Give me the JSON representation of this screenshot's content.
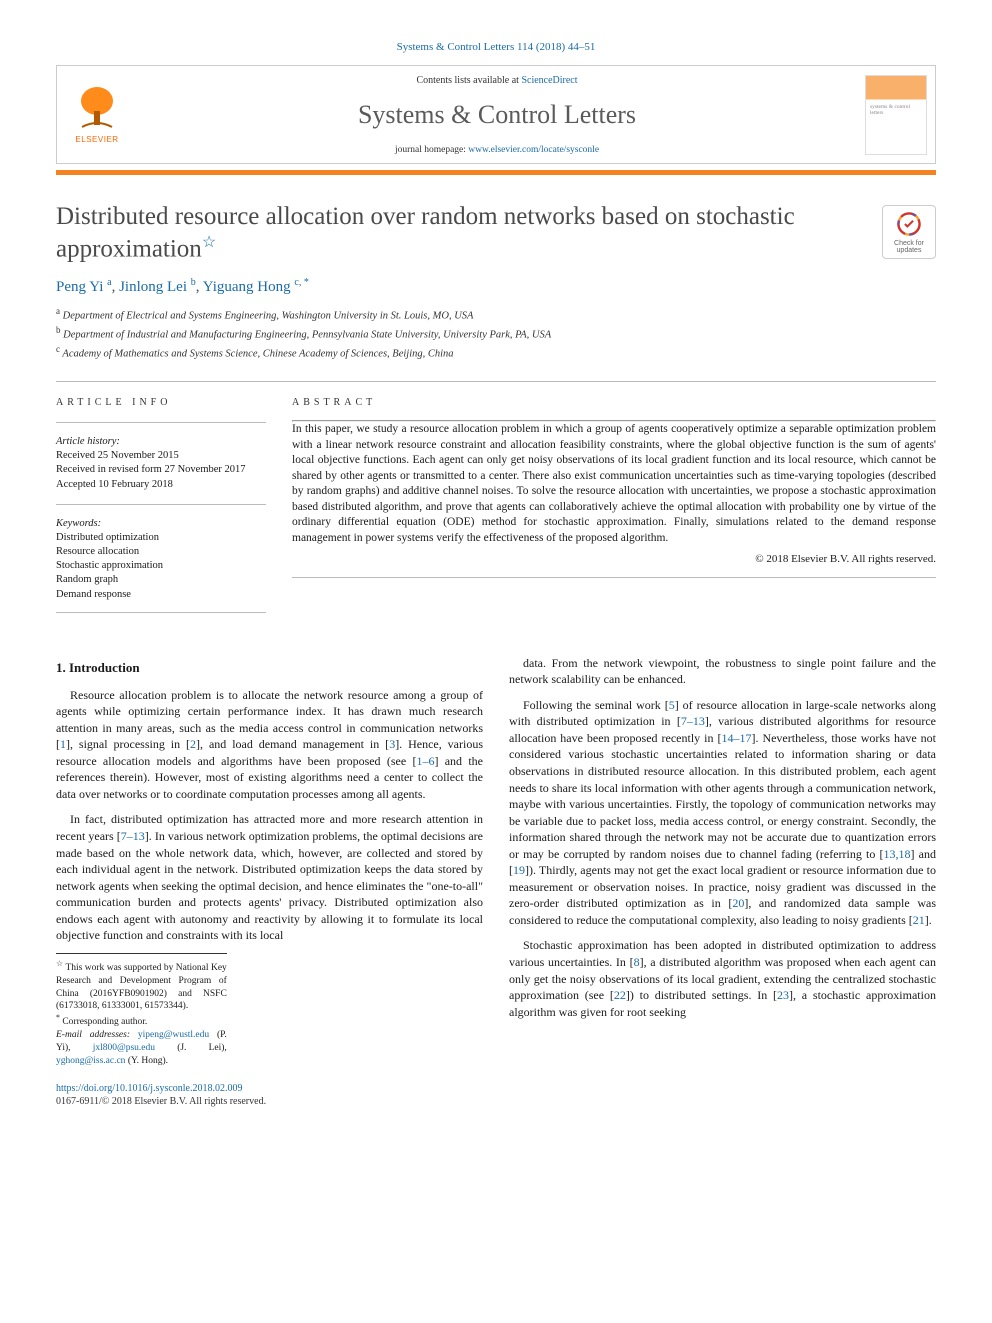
{
  "citation": "Systems & Control Letters 114 (2018) 44–51",
  "header": {
    "contents_prefix": "Contents lists available at ",
    "contents_link": "ScienceDirect",
    "journal_name": "Systems & Control Letters",
    "homepage_prefix": "journal homepage: ",
    "homepage_url": "www.elsevier.com/locate/sysconle",
    "publisher": "ELSEVIER"
  },
  "title": "Distributed resource allocation over random networks based on stochastic approximation",
  "check_updates_label": "Check for updates",
  "authors_html": "Peng Yi",
  "authors": [
    {
      "name": "Peng Yi",
      "affil": "a"
    },
    {
      "name": "Jinlong Lei",
      "affil": "b"
    },
    {
      "name": "Yiguang Hong",
      "affil": "c,",
      "corr": "*"
    }
  ],
  "affiliations": [
    {
      "sup": "a",
      "text": "Department of Electrical and Systems Engineering, Washington University in St. Louis, MO, USA"
    },
    {
      "sup": "b",
      "text": "Department of Industrial and Manufacturing Engineering, Pennsylvania State University, University Park, PA, USA"
    },
    {
      "sup": "c",
      "text": "Academy of Mathematics and Systems Science, Chinese Academy of Sciences, Beijing, China"
    }
  ],
  "info": {
    "heading": "article info",
    "history_label": "Article history:",
    "received": "Received 25 November 2015",
    "revised": "Received in revised form 27 November 2017",
    "accepted": "Accepted 10 February 2018",
    "keywords_label": "Keywords:",
    "keywords": [
      "Distributed optimization",
      "Resource allocation",
      "Stochastic approximation",
      "Random graph",
      "Demand response"
    ]
  },
  "abstract": {
    "heading": "abstract",
    "text": "In this paper, we study a resource allocation problem in which a group of agents cooperatively optimize a separable optimization problem with a linear network resource constraint and allocation feasibility constraints, where the global objective function is the sum of agents' local objective functions. Each agent can only get noisy observations of its local gradient function and its local resource, which cannot be shared by other agents or transmitted to a center. There also exist communication uncertainties such as time-varying topologies (described by random graphs) and additive channel noises. To solve the resource allocation with uncertainties, we propose a stochastic approximation based distributed algorithm, and prove that agents can collaboratively achieve the optimal allocation with probability one by virtue of the ordinary differential equation (ODE) method for stochastic approximation. Finally, simulations related to the demand response management in power systems verify the effectiveness of the proposed algorithm.",
    "copyright": "© 2018 Elsevier B.V. All rights reserved."
  },
  "section1": {
    "heading": "1. Introduction",
    "p1": "Resource allocation problem is to allocate the network resource among a group of agents while optimizing certain performance index. It has drawn much research attention in many areas, such as the media access control in communication networks [1], signal processing in [2], and load demand management in [3]. Hence, various resource allocation models and algorithms have been proposed (see [1–6] and the references therein). However, most of existing algorithms need a center to collect the data over networks or to coordinate computation processes among all agents.",
    "p2": "In fact, distributed optimization has attracted more and more research attention in recent years [7–13]. In various network optimization problems, the optimal decisions are made based on the whole network data, which, however, are collected and stored by each individual agent in the network. Distributed optimization keeps the data stored by network agents when seeking the optimal decision, and hence eliminates the \"one-to-all\" communication burden and protects agents' privacy. Distributed optimization also endows each agent with autonomy and reactivity by allowing it to formulate its local objective function and constraints with its local",
    "p3": "data. From the network viewpoint, the robustness to single point failure and the network scalability can be enhanced.",
    "p4": "Following the seminal work [5] of resource allocation in large-scale networks along with distributed optimization in [7–13], various distributed algorithms for resource allocation have been proposed recently in [14–17]. Nevertheless, those works have not considered various stochastic uncertainties related to information sharing or data observations in distributed resource allocation. In this distributed problem, each agent needs to share its local information with other agents through a communication network, maybe with various uncertainties. Firstly, the topology of communication networks may be variable due to packet loss, media access control, or energy constraint. Secondly, the information shared through the network may not be accurate due to quantization errors or may be corrupted by random noises due to channel fading (referring to [13,18] and [19]). Thirdly, agents may not get the exact local gradient or resource information due to measurement or observation noises. In practice, noisy gradient was discussed in the zero-order distributed optimization as in [20], and randomized data sample was considered to reduce the computational complexity, also leading to noisy gradients [21].",
    "p5": "Stochastic approximation has been adopted in distributed optimization to address various uncertainties. In [8], a distributed algorithm was proposed when each agent can only get the noisy observations of its local gradient, extending the centralized stochastic approximation (see [22]) to distributed settings. In [23], a stochastic approximation algorithm was given for root seeking"
  },
  "footnotes": {
    "funding_marker": "☆",
    "funding": "This work was supported by National Key Research and Development Program of China (2016YFB0901902) and NSFC (61733018, 61333001, 61573344).",
    "corr_marker": "*",
    "corr_text": "Corresponding author.",
    "email_label": "E-mail addresses:",
    "emails": [
      {
        "addr": "yipeng@wustl.edu",
        "who": "(P. Yi)"
      },
      {
        "addr": "jxl800@psu.edu",
        "who": "(J. Lei)"
      },
      {
        "addr": "yghong@iss.ac.cn",
        "who": "(Y. Hong)"
      }
    ]
  },
  "footer": {
    "doi": "https://doi.org/10.1016/j.sysconle.2018.02.009",
    "issn_line": "0167-6911/© 2018 Elsevier B.V. All rights reserved."
  },
  "colors": {
    "link": "#1a6ba8",
    "orange": "#f58220",
    "text": "#1a1a1a",
    "grey_title": "#4a4a4a"
  }
}
